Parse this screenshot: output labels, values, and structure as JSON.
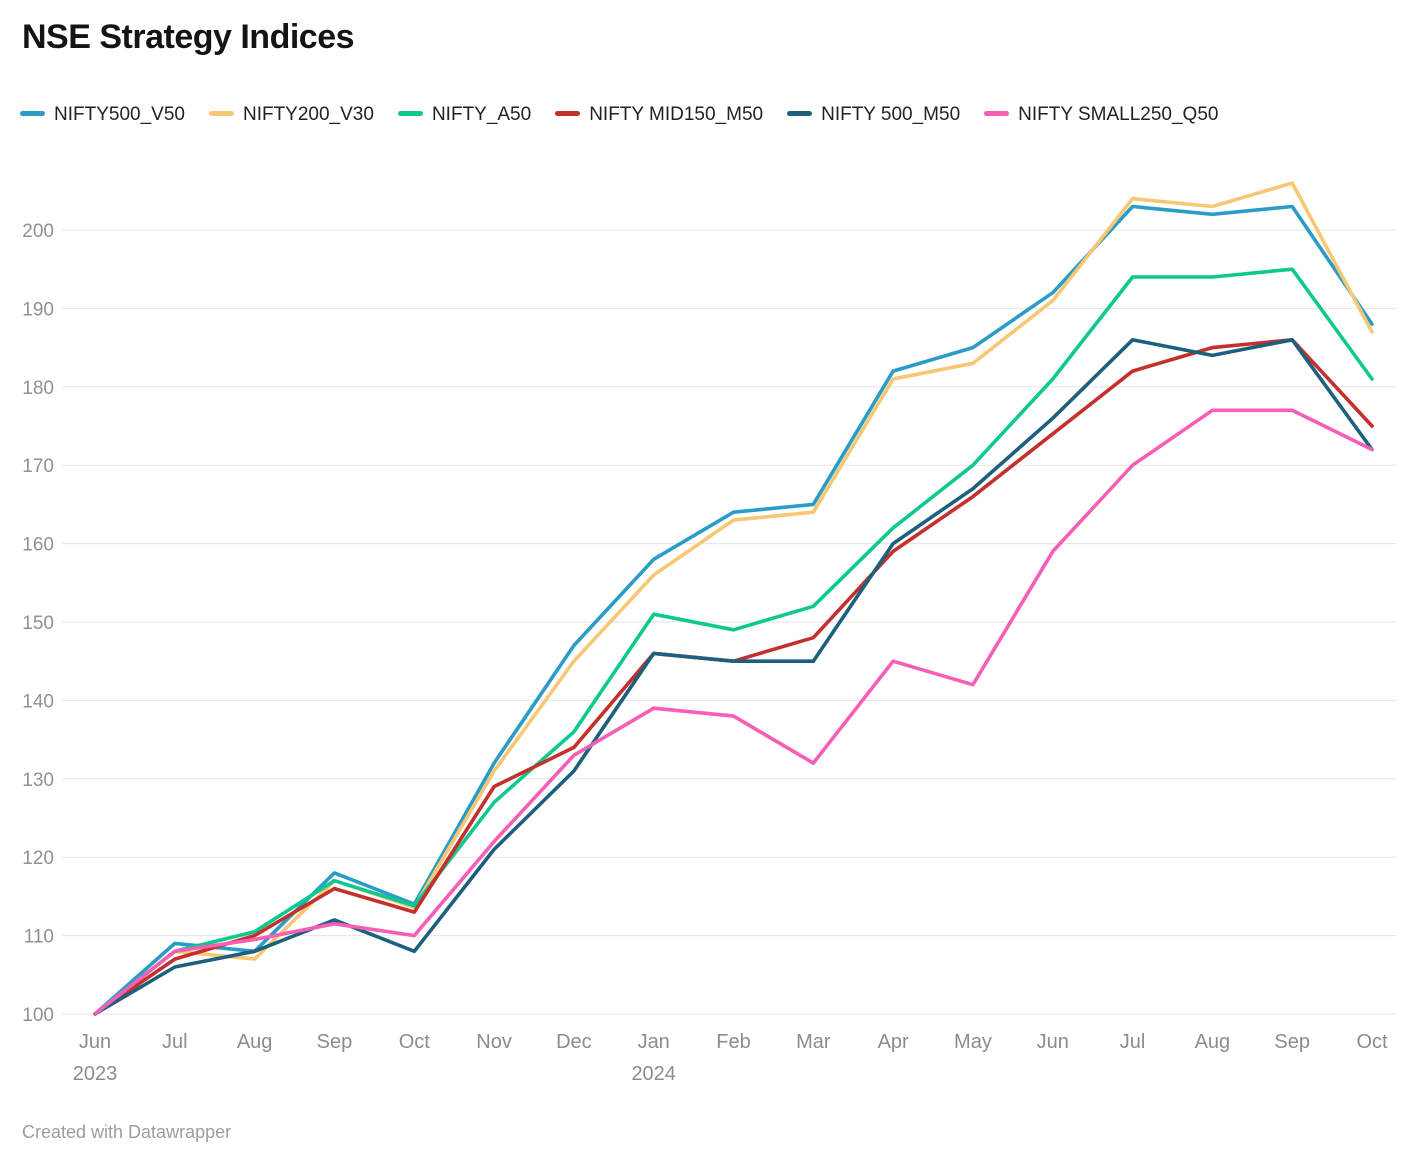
{
  "header": {
    "title": "NSE Strategy Indices"
  },
  "footer": {
    "credit": "Created with Datawrapper"
  },
  "chart_data": {
    "type": "line",
    "title": "NSE Strategy Indices",
    "xlabel": "",
    "ylabel": "",
    "grid": "horizontal",
    "legend_position": "top",
    "ylim": [
      100,
      208
    ],
    "y_ticks": [
      100,
      110,
      120,
      130,
      140,
      150,
      160,
      170,
      180,
      190,
      200
    ],
    "x_categories": [
      "Jun 2023",
      "Jul",
      "Aug",
      "Sep",
      "Oct",
      "Nov",
      "Dec",
      "Jan 2024",
      "Feb",
      "Mar",
      "Apr",
      "May",
      "Jun",
      "Jul",
      "Aug",
      "Sep",
      "Oct"
    ],
    "series": [
      {
        "name": "NIFTY500_V50",
        "color": "#2A9DC7",
        "values": [
          100,
          109,
          108,
          118,
          114,
          132,
          147,
          158,
          164,
          165,
          182,
          185,
          192,
          203,
          202,
          203,
          188
        ]
      },
      {
        "name": "NIFTY200_V30",
        "color": "#F7C773",
        "values": [
          100,
          108,
          107,
          117,
          113.6,
          131,
          145,
          156,
          163,
          164,
          181,
          183,
          191,
          204,
          203,
          206,
          187
        ]
      },
      {
        "name": "NIFTY_A50",
        "color": "#0DC990",
        "values": [
          100,
          108,
          110.5,
          117,
          113.8,
          127,
          136,
          151,
          149,
          152,
          162,
          170,
          181,
          194,
          194,
          195,
          181
        ]
      },
      {
        "name": "NIFTY MID150_M50",
        "color": "#C4302B",
        "values": [
          100,
          107,
          110,
          116,
          113,
          129,
          134,
          146,
          145,
          148,
          159,
          166,
          174,
          182,
          185,
          186,
          175
        ]
      },
      {
        "name": "NIFTY 500_M50",
        "color": "#1C607D",
        "values": [
          100,
          106,
          108,
          112,
          108,
          121,
          131,
          146,
          145,
          145,
          160,
          167,
          176,
          186,
          184,
          186,
          172
        ]
      },
      {
        "name": "NIFTY SMALL250_Q50",
        "color": "#F75EB6",
        "values": [
          100,
          108,
          109.5,
          111.5,
          110,
          122,
          133,
          139,
          138,
          132,
          145,
          142,
          159,
          170,
          177,
          177,
          172
        ]
      }
    ]
  }
}
